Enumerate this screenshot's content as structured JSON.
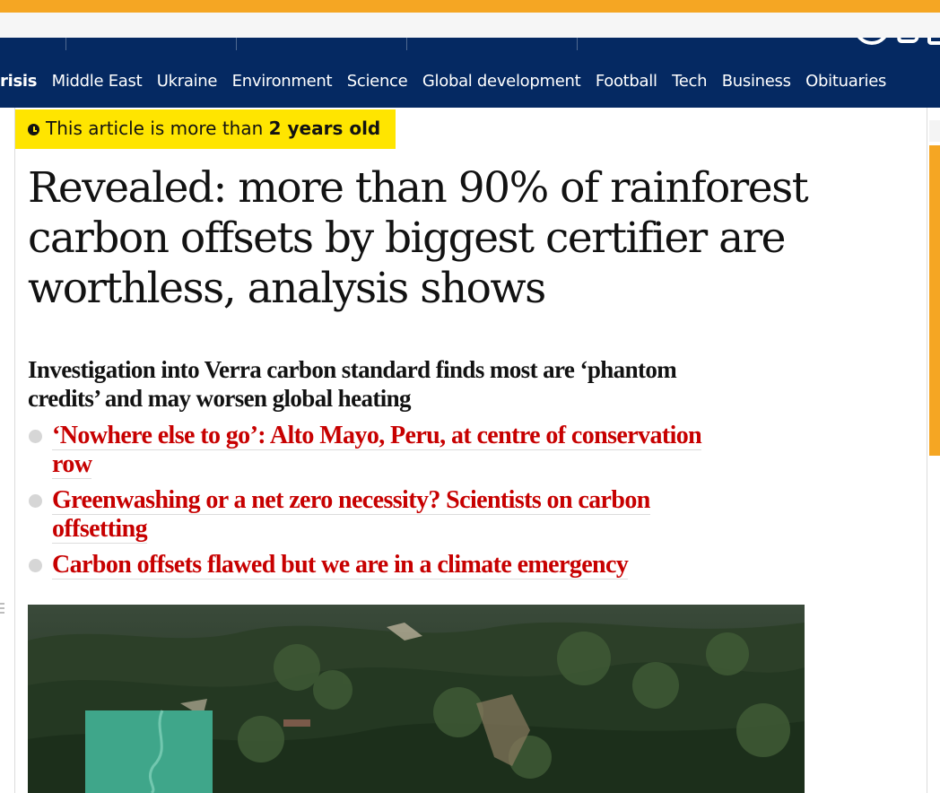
{
  "nav": {
    "sections": [
      "risis",
      "Middle East",
      "Ukraine",
      "Environment",
      "Science",
      "Global development",
      "Football",
      "Tech",
      "Business",
      "Obituaries"
    ]
  },
  "article": {
    "age_badge_prefix": "This article is more than",
    "age_badge_bold": "2 years old",
    "headline": "Revealed: more than 90% of rainforest carbon offsets by biggest certifier are worthless, analysis shows",
    "standfirst": "Investigation into Verra carbon standard finds most are ‘phantom credits’ and may worsen global heating",
    "related_links": [
      "‘Nowhere else to go’: Alto Mayo, Peru, at centre of conservation row",
      "Greenwashing or a net zero necessity? Scientists on carbon offsetting",
      "Carbon offsets flawed but we are in a climate emergency"
    ]
  },
  "colors": {
    "brand_blue": "#052962",
    "accent_orange": "#f5a623",
    "badge_yellow": "#ffe500",
    "link_red": "#c70000"
  },
  "icons": [
    "clock-icon",
    "bullet-icon"
  ]
}
